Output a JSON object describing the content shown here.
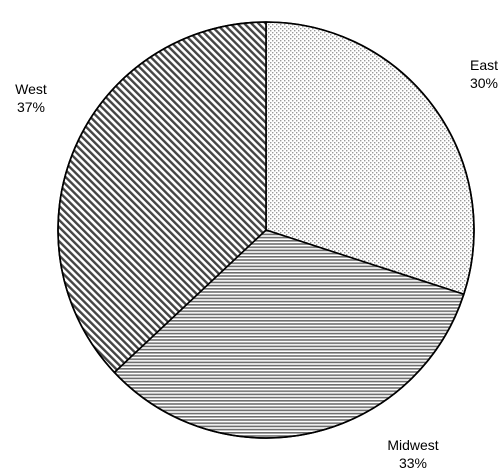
{
  "chart_data": {
    "type": "pie",
    "title": "",
    "slices": [
      {
        "label": "East",
        "value": 30,
        "percent_label": "30%",
        "pattern": "dots"
      },
      {
        "label": "Midwest",
        "value": 33,
        "percent_label": "33%",
        "pattern": "horizontal-lines"
      },
      {
        "label": "West",
        "value": 37,
        "percent_label": "37%",
        "pattern": "diagonal-lines"
      }
    ],
    "start_angle_deg": 0,
    "direction": "clockwise",
    "legend": "none",
    "colors": {
      "stroke": "#000000",
      "background": "#ffffff"
    }
  }
}
